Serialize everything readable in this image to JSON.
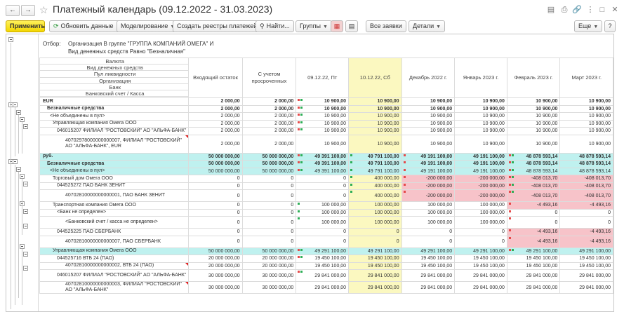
{
  "window": {
    "title": "Платежный календарь (09.12.2022 - 31.03.2023)",
    "back_icon": "arrow-left-icon",
    "forward_icon": "arrow-right-icon",
    "favorite_icon": "star-icon"
  },
  "toolbar": {
    "apply": "Применить",
    "refresh": "Обновить данные",
    "modeling": "Моделирование",
    "create_registers": "Создать реестры платежей",
    "find": "Найти...",
    "groups": "Группы",
    "all_requests": "Все заявки",
    "details": "Детали",
    "more": "Еще",
    "help": "?"
  },
  "filter": {
    "label": "Отбор:",
    "line1": "Организация В группе \"ГРУППА КОМПАНИЙ ОМЕГА\" И",
    "line2": "Вид денежных средств Равно \"Безналичная\""
  },
  "header": {
    "dimensions": [
      "Валюта",
      "Вид денежных средств",
      "Пул ликвидности",
      "Организация",
      "Банк",
      "Банковский счет / Касса"
    ],
    "columns": [
      "Входящий остаток",
      "С учетом просроченных",
      "09.12.22, Пт",
      "10.12.22, Сб",
      "Декабрь 2022 г.",
      "Январь 2023 г.",
      "Февраль 2023 г.",
      "Март 2023 г."
    ]
  },
  "rows": [
    {
      "label": "EUR",
      "cls": "b",
      "values": [
        "2 000,00",
        "2 000,00",
        "10 900,00",
        "10 900,00",
        "10 900,00",
        "10 900,00",
        "10 900,00",
        "10 900,00"
      ],
      "marks": [
        0,
        0,
        "rg",
        0,
        0,
        0,
        0,
        0
      ]
    },
    {
      "label": "Безналичные средства",
      "cls": "b",
      "values": [
        "2 000,00",
        "2 000,00",
        "10 900,00",
        "10 900,00",
        "10 900,00",
        "10 900,00",
        "10 900,00",
        "10 900,00"
      ],
      "marks": [
        0,
        0,
        "rg",
        0,
        0,
        0,
        0,
        0
      ]
    },
    {
      "label": "<Не объединены в пул>",
      "values": [
        "2 000,00",
        "2 000,00",
        "10 900,00",
        "10 900,00",
        "10 900,00",
        "10 900,00",
        "10 900,00",
        "10 900,00"
      ],
      "marks": [
        0,
        0,
        "rg",
        0,
        0,
        0,
        0,
        0
      ]
    },
    {
      "label": "Управляющая компания Омега ООО",
      "values": [
        "2 000,00",
        "2 000,00",
        "10 900,00",
        "10 900,00",
        "10 900,00",
        "10 900,00",
        "10 900,00",
        "10 900,00"
      ],
      "marks": [
        0,
        0,
        "rg",
        0,
        0,
        0,
        0,
        0
      ]
    },
    {
      "label": "046015207 ФИЛИАЛ \"РОСТОВСКИЙ\" АО \"АЛЬФА-БАНК\"",
      "values": [
        "2 000,00",
        "2 000,00",
        "10 900,00",
        "10 900,00",
        "10 900,00",
        "10 900,00",
        "10 900,00",
        "10 900,00"
      ],
      "marks": [
        0,
        0,
        "rg",
        0,
        0,
        0,
        0,
        0
      ]
    },
    {
      "label": "40702978000000000007, ФИЛИАЛ \"РОСТОВСКИЙ\" АО \"АЛЬФА-БАНК\", EUR",
      "tall": true,
      "tri": true,
      "values": [
        "2 000,00",
        "2 000,00",
        "10 900,00",
        "10 900,00",
        "10 900,00",
        "10 900,00",
        "10 900,00",
        "10 900,00"
      ],
      "marks": [
        0,
        0,
        0,
        0,
        0,
        0,
        0,
        0
      ]
    },
    {
      "label": "руб.",
      "cls": "b cyan",
      "values": [
        "50 000 000,00",
        "50 000 000,00",
        "49 391 100,00",
        "49 791 100,00",
        "49 191 100,00",
        "49 191 100,00",
        "48 878 593,14",
        "48 878 593,14"
      ],
      "marks": [
        0,
        0,
        "rg",
        "g",
        "r",
        0,
        "rg",
        0
      ]
    },
    {
      "label": "Безналичные средства",
      "cls": "b cyan",
      "values": [
        "50 000 000,00",
        "50 000 000,00",
        "49 391 100,00",
        "49 791 100,00",
        "49 191 100,00",
        "49 191 100,00",
        "48 878 593,14",
        "48 878 593,14"
      ],
      "marks": [
        0,
        0,
        "rg",
        "g",
        "r",
        0,
        "rg",
        0
      ]
    },
    {
      "label": "<Не объединены в пул>",
      "cls": "cyan",
      "values": [
        "50 000 000,00",
        "50 000 000,00",
        "49 391 100,00",
        "49 791 100,00",
        "49 191 100,00",
        "49 191 100,00",
        "48 878 593,14",
        "48 878 593,14"
      ],
      "marks": [
        0,
        0,
        "rg",
        "g",
        "r",
        0,
        "rg",
        0
      ]
    },
    {
      "label": "Торговый дом Омега ООО",
      "values": [
        "0",
        "0",
        "0",
        "400 000,00",
        "-200 000,00",
        "-200 000,00",
        "-408 013,70",
        "-408 013,70"
      ],
      "marks": [
        0,
        0,
        0,
        "g",
        "r",
        0,
        "rg",
        0
      ],
      "pink": [
        4,
        5,
        6,
        7
      ]
    },
    {
      "label": "044525272 ПАО БАНК ЗЕНИТ",
      "values": [
        "0",
        "0",
        "0",
        "400 000,00",
        "-200 000,00",
        "-200 000,00",
        "-408 013,70",
        "-408 013,70"
      ],
      "marks": [
        0,
        0,
        0,
        "g",
        "r",
        0,
        "rg",
        0
      ],
      "pink": [
        4,
        5,
        6,
        7
      ]
    },
    {
      "label": "40702810000000000001, ПАО БАНК ЗЕНИТ",
      "tall2": true,
      "values": [
        "0",
        "0",
        "0",
        "400 000,00",
        "-200 000,00",
        "-200 000,00",
        "-408 013,70",
        "-408 013,70"
      ],
      "marks": [
        0,
        0,
        0,
        "g",
        "r",
        0,
        "rg",
        0
      ],
      "pink": [
        4,
        5,
        6,
        7
      ]
    },
    {
      "label": "Транспортная компания Омега ООО",
      "values": [
        "0",
        "0",
        "100 000,00",
        "100 000,00",
        "100 000,00",
        "100 000,00",
        "-4 493,16",
        "-4 493,16"
      ],
      "marks": [
        0,
        0,
        "g",
        0,
        0,
        0,
        "r",
        0
      ],
      "pink": [
        6,
        7
      ]
    },
    {
      "label": "<Банк не определен>",
      "values": [
        "0",
        "0",
        "100 000,00",
        "100 000,00",
        "100 000,00",
        "100 000,00",
        "0",
        "0"
      ],
      "marks": [
        0,
        0,
        "g",
        0,
        0,
        0,
        "r",
        0
      ]
    },
    {
      "label": "<Банковский счет / касса не определен>",
      "tall2": true,
      "values": [
        "0",
        "0",
        "100 000,00",
        "100 000,00",
        "100 000,00",
        "100 000,00",
        "0",
        "0"
      ],
      "marks": [
        0,
        0,
        "g",
        0,
        0,
        0,
        "r",
        0
      ]
    },
    {
      "label": "044525225 ПАО СБЕРБАНК",
      "values": [
        "0",
        "0",
        "0",
        "0",
        "0",
        "0",
        "-4 493,16",
        "-4 493,16"
      ],
      "marks": [
        0,
        0,
        0,
        0,
        0,
        0,
        "r",
        0
      ],
      "pink": [
        6,
        7
      ]
    },
    {
      "label": "40702810000000000007, ПАО СБЕРБАНК",
      "tall2": true,
      "values": [
        "0",
        "0",
        "0",
        "0",
        "0",
        "0",
        "-4 493,16",
        "-4 493,16"
      ],
      "marks": [
        0,
        0,
        0,
        0,
        0,
        0,
        "r",
        0
      ],
      "pink": [
        6,
        7
      ]
    },
    {
      "label": "Управляющая компания Омега ООО",
      "cls": "cyan",
      "values": [
        "50 000 000,00",
        "50 000 000,00",
        "49 291 100,00",
        "49 291 100,00",
        "49 291 100,00",
        "49 291 100,00",
        "49 291 100,00",
        "49 291 100,00"
      ],
      "marks": [
        0,
        0,
        "rg",
        0,
        0,
        0,
        "rg",
        0
      ]
    },
    {
      "label": "044525716 ВТБ 24 (ПАО)",
      "values": [
        "20 000 000,00",
        "20 000 000,00",
        "19 450 100,00",
        "19 450 100,00",
        "19 450 100,00",
        "19 450 100,00",
        "19 450 100,00",
        "19 450 100,00"
      ],
      "marks": [
        0,
        0,
        "rg",
        0,
        0,
        0,
        0,
        0
      ]
    },
    {
      "label": "40702810000000000002, ВТБ 24 (ПАО)",
      "tri": true,
      "values": [
        "20 000 000,00",
        "20 000 000,00",
        "19 450 100,00",
        "19 450 100,00",
        "19 450 100,00",
        "19 450 100,00",
        "19 450 100,00",
        "19 450 100,00"
      ],
      "marks": [
        0,
        0,
        0,
        0,
        0,
        0,
        0,
        0
      ]
    },
    {
      "label": "046015207 ФИЛИАЛ \"РОСТОВСКИЙ\" АО \"АЛЬФА-БАНК\"",
      "tall2": true,
      "values": [
        "30 000 000,00",
        "30 000 000,00",
        "29 841 000,00",
        "29 841 000,00",
        "29 841 000,00",
        "29 841 000,00",
        "29 841 000,00",
        "29 841 000,00"
      ],
      "marks": [
        0,
        0,
        "rg",
        0,
        0,
        0,
        0,
        0
      ]
    },
    {
      "label": "40702810000000000003, ФИЛИАЛ \"РОСТОВСКИЙ\" АО \"АЛЬФА-БАНК\"",
      "tall2": true,
      "tri": true,
      "values": [
        "30 000 000,00",
        "30 000 000,00",
        "29 841 000,00",
        "29 841 000,00",
        "29 841 000,00",
        "29 841 000,00",
        "29 841 000,00",
        "29 841 000,00"
      ],
      "marks": [
        0,
        0,
        0,
        0,
        0,
        0,
        0,
        0
      ]
    }
  ]
}
